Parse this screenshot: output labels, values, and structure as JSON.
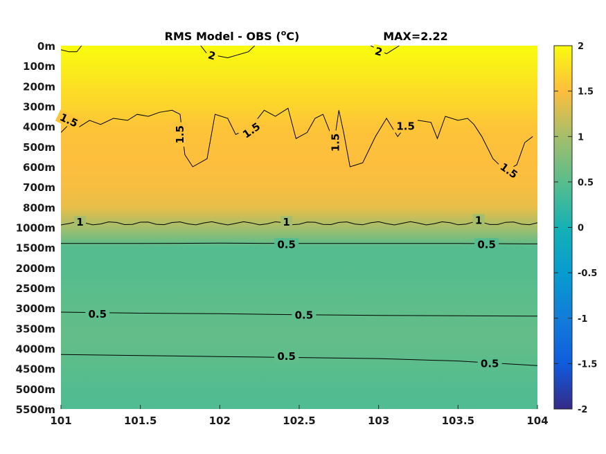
{
  "chart_data": {
    "type": "heatmap",
    "title": "RMS Model - OBS (",
    "title_unit": "C)",
    "title_degree": "o",
    "max_label": "MAX=2.22",
    "x_ticks": [
      101,
      101.5,
      102,
      102.5,
      103,
      103.5,
      104
    ],
    "x_tick_labels": [
      "101",
      "101.5",
      "102",
      "102.5",
      "103",
      "103.5",
      "104"
    ],
    "xlim": [
      101,
      104
    ],
    "y_tick_labels": [
      "0m",
      "100m",
      "200m",
      "300m",
      "400m",
      "500m",
      "600m",
      "700m",
      "800m",
      "1000m",
      "1500m",
      "2000m",
      "2500m",
      "3000m",
      "3500m",
      "4000m",
      "4500m",
      "5000m",
      "5500m"
    ],
    "colorbar": {
      "range": [
        -2,
        2
      ],
      "ticks": [
        2,
        1.5,
        1,
        0.5,
        0,
        -0.5,
        -1,
        -1.5,
        -2
      ],
      "tick_labels": [
        "2",
        "1.5",
        "1",
        "0.5",
        "0",
        "-0.5",
        "-1",
        "-1.5",
        "-2"
      ],
      "colormap": "parula"
    },
    "rows": [
      {
        "depth": "0m",
        "value": 2.05
      },
      {
        "depth": "100m",
        "value": 1.9
      },
      {
        "depth": "200m",
        "value": 1.78
      },
      {
        "depth": "300m",
        "value": 1.68
      },
      {
        "depth": "400m",
        "value": 1.55
      },
      {
        "depth": "500m",
        "value": 1.52
      },
      {
        "depth": "600m",
        "value": 1.5
      },
      {
        "depth": "700m",
        "value": 1.46
      },
      {
        "depth": "800m",
        "value": 1.38
      },
      {
        "depth": "1000m",
        "value": 1.0
      },
      {
        "depth": "1500m",
        "value": 0.46
      },
      {
        "depth": "2000m",
        "value": 0.47
      },
      {
        "depth": "2500m",
        "value": 0.5
      },
      {
        "depth": "3000m",
        "value": 0.53
      },
      {
        "depth": "3500m",
        "value": 0.56
      },
      {
        "depth": "4000m",
        "value": 0.55
      },
      {
        "depth": "4500m",
        "value": 0.5
      },
      {
        "depth": "5000m",
        "value": 0.45
      },
      {
        "depth": "5500m",
        "value": 0.44
      }
    ],
    "contour_levels": [
      0.5,
      1,
      1.5,
      2
    ],
    "contour_labels": [
      {
        "text": "2",
        "x": 101.95,
        "depth_index": 0.5,
        "angle": 15
      },
      {
        "text": "2",
        "x": 103.0,
        "depth_index": 0.3,
        "angle": 15
      },
      {
        "text": "1.5",
        "x": 101.05,
        "depth_index": 3.7,
        "angle": 25
      },
      {
        "text": "1.5",
        "x": 101.75,
        "depth_index": 4.4,
        "angle": -90
      },
      {
        "text": "1.5",
        "x": 102.2,
        "depth_index": 4.2,
        "angle": -35
      },
      {
        "text": "1.5",
        "x": 102.73,
        "depth_index": 4.8,
        "angle": -90
      },
      {
        "text": "1.5",
        "x": 103.17,
        "depth_index": 4.0,
        "angle": 0
      },
      {
        "text": "1.5",
        "x": 103.82,
        "depth_index": 6.2,
        "angle": 35
      },
      {
        "text": "1",
        "x": 101.12,
        "depth_index": 8.75,
        "angle": 0
      },
      {
        "text": "1",
        "x": 102.42,
        "depth_index": 8.75,
        "angle": 0
      },
      {
        "text": "1",
        "x": 103.63,
        "depth_index": 8.65,
        "angle": 0
      },
      {
        "text": "0.5",
        "x": 102.42,
        "depth_index": 9.85,
        "angle": 0
      },
      {
        "text": "0.5",
        "x": 103.68,
        "depth_index": 9.85,
        "angle": 0
      },
      {
        "text": "0.5",
        "x": 101.23,
        "depth_index": 13.3,
        "angle": 0
      },
      {
        "text": "0.5",
        "x": 102.53,
        "depth_index": 13.35,
        "angle": 0
      },
      {
        "text": "0.5",
        "x": 102.42,
        "depth_index": 15.4,
        "angle": 0
      },
      {
        "text": "0.5",
        "x": 103.7,
        "depth_index": 15.75,
        "angle": 0
      }
    ]
  }
}
